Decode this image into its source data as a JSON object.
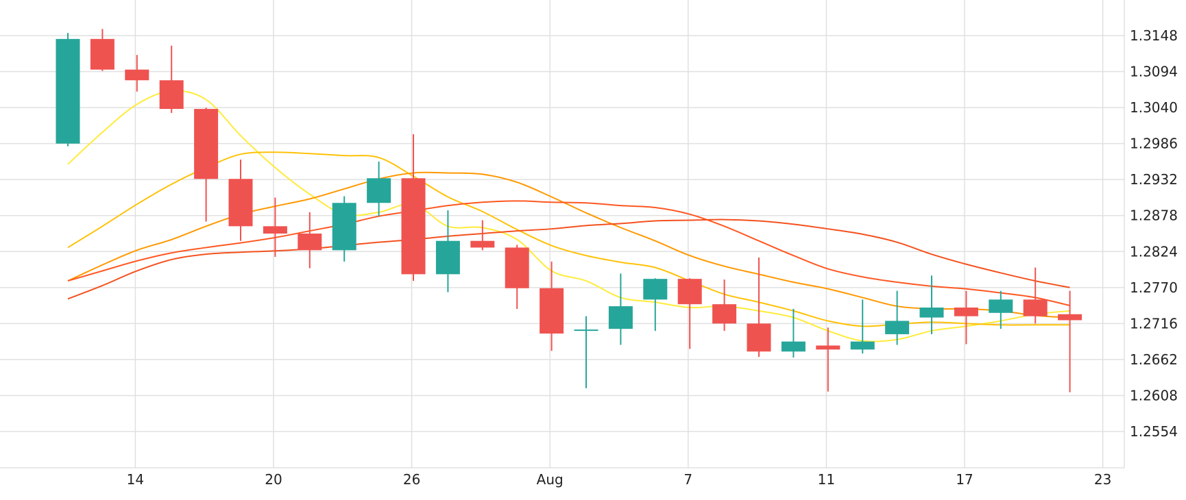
{
  "chart_data": {
    "type": "candlestick",
    "title": "",
    "xlabel": "",
    "ylabel": "",
    "ylim": [
      1.25,
      1.3196
    ],
    "y_ticks": [
      1.2554,
      1.2608,
      1.2662,
      1.2716,
      1.277,
      1.2824,
      1.2878,
      1.2932,
      1.2986,
      1.304,
      1.3094,
      1.3148
    ],
    "x_ticks": [
      {
        "label": "14",
        "index": 1
      },
      {
        "label": "20",
        "index": 5
      },
      {
        "label": "26",
        "index": 9
      },
      {
        "label": "Aug",
        "index": 13
      },
      {
        "label": "7",
        "index": 17
      },
      {
        "label": "11",
        "index": 21
      },
      {
        "label": "17",
        "index": 25
      },
      {
        "label": "23",
        "index": 29
      }
    ],
    "grid": true,
    "colors": {
      "up": "#26a69a",
      "down": "#ef5350",
      "grid": "#e0e0e0"
    },
    "candles": [
      {
        "o": 1.2986,
        "h": 1.3152,
        "l": 1.2982,
        "c": 1.3143
      },
      {
        "o": 1.3143,
        "h": 1.3158,
        "l": 1.3095,
        "c": 1.3097
      },
      {
        "o": 1.3097,
        "h": 1.3119,
        "l": 1.3064,
        "c": 1.3081
      },
      {
        "o": 1.3081,
        "h": 1.3133,
        "l": 1.3032,
        "c": 1.3038
      },
      {
        "o": 1.3038,
        "h": 1.304,
        "l": 1.2869,
        "c": 1.2933
      },
      {
        "o": 1.2933,
        "h": 1.2962,
        "l": 1.284,
        "c": 1.2862
      },
      {
        "o": 1.2862,
        "h": 1.2905,
        "l": 1.2816,
        "c": 1.2851
      },
      {
        "o": 1.2851,
        "h": 1.2883,
        "l": 1.2799,
        "c": 1.2826
      },
      {
        "o": 1.2826,
        "h": 1.2907,
        "l": 1.2809,
        "c": 1.2897
      },
      {
        "o": 1.2897,
        "h": 1.2959,
        "l": 1.2877,
        "c": 1.2934
      },
      {
        "o": 1.2934,
        "h": 1.3,
        "l": 1.278,
        "c": 1.279
      },
      {
        "o": 1.279,
        "h": 1.2886,
        "l": 1.2763,
        "c": 1.284
      },
      {
        "o": 1.284,
        "h": 1.2871,
        "l": 1.2826,
        "c": 1.283
      },
      {
        "o": 1.283,
        "h": 1.2834,
        "l": 1.2738,
        "c": 1.2769
      },
      {
        "o": 1.2769,
        "h": 1.2809,
        "l": 1.2675,
        "c": 1.2701
      },
      {
        "o": 1.2706,
        "h": 1.2727,
        "l": 1.2619,
        "c": 1.2707
      },
      {
        "o": 1.2708,
        "h": 1.2791,
        "l": 1.2684,
        "c": 1.2742
      },
      {
        "o": 1.2752,
        "h": 1.2784,
        "l": 1.2705,
        "c": 1.2783
      },
      {
        "o": 1.2783,
        "h": 1.2784,
        "l": 1.2678,
        "c": 1.2745
      },
      {
        "o": 1.2745,
        "h": 1.2782,
        "l": 1.2705,
        "c": 1.2716
      },
      {
        "o": 1.2716,
        "h": 1.2815,
        "l": 1.2666,
        "c": 1.2674
      },
      {
        "o": 1.2674,
        "h": 1.2738,
        "l": 1.2665,
        "c": 1.2689
      },
      {
        "o": 1.2683,
        "h": 1.271,
        "l": 1.2614,
        "c": 1.2677
      },
      {
        "o": 1.2677,
        "h": 1.2752,
        "l": 1.2671,
        "c": 1.2689
      },
      {
        "o": 1.27,
        "h": 1.2765,
        "l": 1.2684,
        "c": 1.272
      },
      {
        "o": 1.2725,
        "h": 1.2788,
        "l": 1.27,
        "c": 1.274
      },
      {
        "o": 1.274,
        "h": 1.2765,
        "l": 1.2685,
        "c": 1.2727
      },
      {
        "o": 1.2732,
        "h": 1.2765,
        "l": 1.2708,
        "c": 1.2752
      },
      {
        "o": 1.2752,
        "h": 1.28,
        "l": 1.2716,
        "c": 1.2727
      },
      {
        "o": 1.273,
        "h": 1.2765,
        "l": 1.2613,
        "c": 1.2721
      }
    ],
    "series": [
      {
        "color": "#ffeb3b",
        "values": [
          1.2955,
          1.3003,
          1.3045,
          1.3065,
          1.3052,
          1.2998,
          1.295,
          1.291,
          1.288,
          1.2883,
          1.2895,
          1.2862,
          1.286,
          1.2842,
          1.2795,
          1.278,
          1.2755,
          1.2748,
          1.274,
          1.2742,
          1.2735,
          1.2725,
          1.2705,
          1.269,
          1.2692,
          1.2705,
          1.2712,
          1.272,
          1.273,
          1.2735
        ]
      },
      {
        "color": "#ffc107",
        "values": [
          1.283,
          1.2862,
          1.2895,
          1.2925,
          1.295,
          1.297,
          1.2973,
          1.2971,
          1.2968,
          1.2965,
          1.2937,
          1.2906,
          1.2884,
          1.2857,
          1.2833,
          1.2818,
          1.2808,
          1.28,
          1.278,
          1.276,
          1.2748,
          1.2735,
          1.272,
          1.2712,
          1.2715,
          1.2718,
          1.2716,
          1.2714,
          1.2714,
          1.2714
        ]
      },
      {
        "color": "#ff9800",
        "values": [
          1.278,
          1.2804,
          1.2826,
          1.2842,
          1.2862,
          1.288,
          1.2892,
          1.2903,
          1.2918,
          1.2933,
          1.2942,
          1.2942,
          1.294,
          1.2928,
          1.2906,
          1.2882,
          1.286,
          1.284,
          1.2818,
          1.2802,
          1.279,
          1.2778,
          1.2768,
          1.2755,
          1.2742,
          1.2738,
          1.2738,
          1.2735,
          1.2728,
          1.2725
        ]
      },
      {
        "color": "#ff5722",
        "values": [
          1.278,
          1.2795,
          1.281,
          1.2822,
          1.283,
          1.2837,
          1.2845,
          1.2855,
          1.2865,
          1.2877,
          1.2885,
          1.2893,
          1.2898,
          1.29,
          1.2898,
          1.2897,
          1.2893,
          1.289,
          1.288,
          1.2862,
          1.284,
          1.2818,
          1.2798,
          1.2786,
          1.2778,
          1.2772,
          1.2768,
          1.2762,
          1.2755,
          1.2743
        ]
      },
      {
        "color": "#f4511e",
        "values": [
          1.2753,
          1.2773,
          1.2795,
          1.2812,
          1.282,
          1.2823,
          1.2825,
          1.2828,
          1.2833,
          1.2838,
          1.2842,
          1.2847,
          1.2851,
          1.2855,
          1.2858,
          1.2863,
          1.2866,
          1.287,
          1.2871,
          1.2872,
          1.287,
          1.2865,
          1.2858,
          1.285,
          1.2838,
          1.282,
          1.2805,
          1.2792,
          1.278,
          1.277
        ]
      }
    ]
  }
}
